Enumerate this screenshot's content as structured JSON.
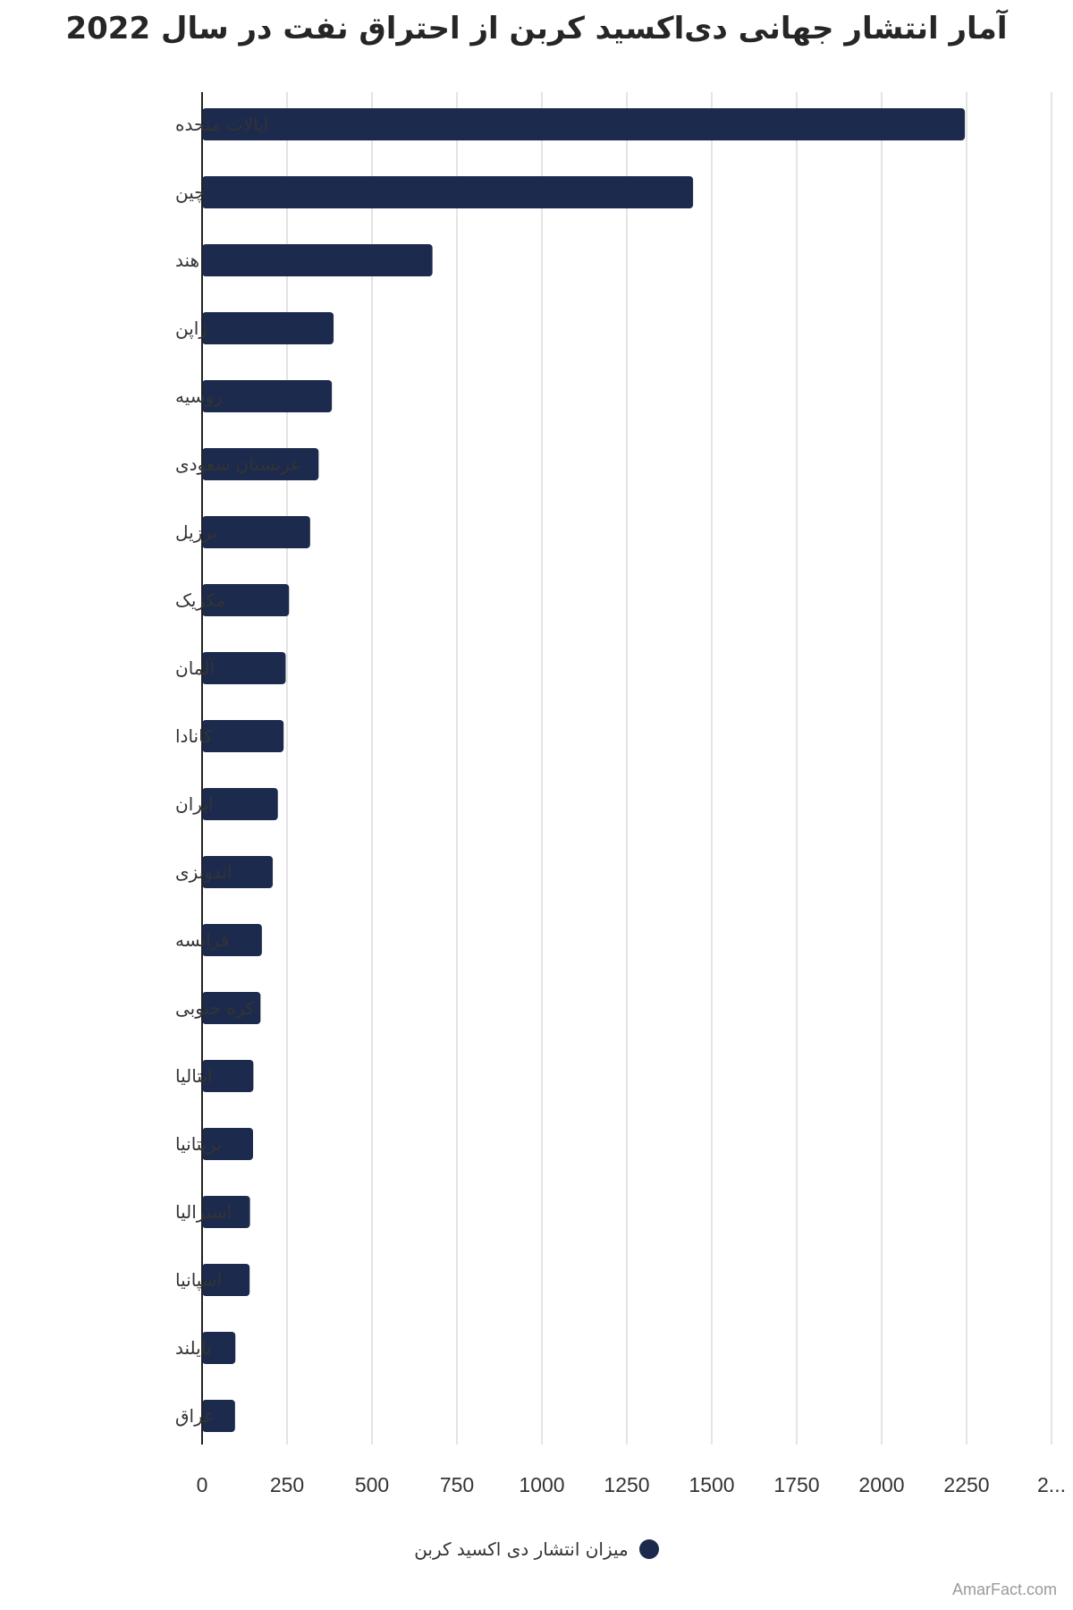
{
  "colors": {
    "bar": "#1c2a4d",
    "grid": "#dcdcdc",
    "axis": "#222222"
  },
  "chart_data": {
    "type": "bar",
    "orientation": "horizontal",
    "title": "آمار انتشار جهانی دی‌اکسید کربن از احتراق نفت در سال 2022",
    "categories": [
      "ایالات متحده",
      "چین",
      "هند",
      "ژاپن",
      "روسیه",
      "عربستان سعودی",
      "برزیل",
      "مکزیک",
      "آلمان",
      "کانادا",
      "ایران",
      "اندونزی",
      "فرانسه",
      "کره جنوبی",
      "ایتالیا",
      "بریتانیا",
      "استرالیا",
      "اسپانیا",
      "تایلند",
      "عراق"
    ],
    "series": [
      {
        "name": "میزان انتشار دی اکسید کربن",
        "values": [
          2245,
          1445,
          678,
          387,
          382,
          343,
          318,
          256,
          246,
          240,
          223,
          208,
          176,
          172,
          151,
          150,
          141,
          140,
          98,
          97
        ]
      }
    ],
    "x_ticks": [
      "0",
      "250",
      "500",
      "750",
      "1000",
      "1250",
      "1500",
      "1750",
      "2000",
      "2250",
      "2..."
    ],
    "xlim": [
      0,
      2500
    ],
    "grid": true,
    "legend_position": "bottom"
  },
  "watermark": "AmarFact.com"
}
